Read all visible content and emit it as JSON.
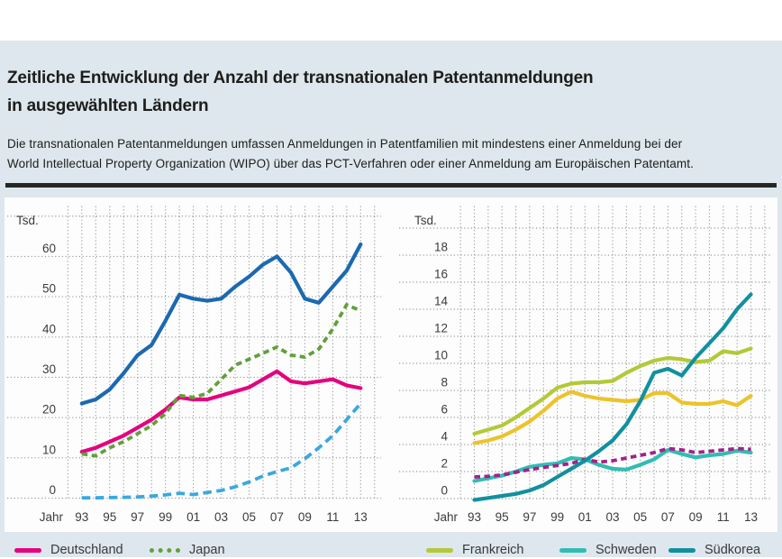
{
  "page": {
    "title_line1": "Zeitliche Entwicklung der Anzahl der transnationalen Patentanmeldungen",
    "title_line2": "in ausgewählten Ländern",
    "description_line1": "Die transnationalen Patentanmeldungen umfassen Anmeldungen in Patentfamilien mit mindestens einer Anmeldung bei der",
    "description_line2": "World Intellectual Property Organization (WIPO) über das PCT-Verfahren oder einer Anmeldung am Europäischen Patentamt.",
    "background_color": "#dde7ed",
    "panel_color": "#fdfdfe",
    "rule_color": "#262624"
  },
  "chart_data": [
    {
      "type": "line",
      "unit_label": "Tsd.",
      "x_axis_label": "Jahr",
      "x_tick_labels": [
        "93",
        "95",
        "97",
        "99",
        "01",
        "03",
        "05",
        "07",
        "09",
        "11",
        "13"
      ],
      "years": [
        1993,
        1994,
        1995,
        1996,
        1997,
        1998,
        1999,
        2000,
        2001,
        2002,
        2003,
        2004,
        2005,
        2006,
        2007,
        2008,
        2009,
        2010,
        2011,
        2012,
        2013
      ],
      "y_tick_labels": [
        "0",
        "10",
        "20",
        "30",
        "40",
        "50",
        "60"
      ],
      "ylim": [
        0,
        70
      ],
      "grid": true,
      "series": [
        {
          "name": "Deutschland",
          "legend_visible": true,
          "color": "#e5007d",
          "line_style": "solid",
          "values": [
            11.5,
            12.5,
            14,
            15.5,
            17.5,
            19.5,
            22,
            25,
            24.5,
            24.5,
            25.5,
            26.5,
            27.5,
            29.5,
            31.5,
            29,
            28.5,
            29,
            29.5,
            28,
            27.3
          ]
        },
        {
          "name": "Japan",
          "legend_visible": true,
          "color": "#61a03b",
          "line_style": "dashed",
          "values": [
            11,
            10.5,
            12.5,
            14,
            16,
            18,
            21,
            25.5,
            25,
            26,
            29.5,
            33,
            34.5,
            36,
            37.5,
            35.5,
            35,
            37,
            42,
            48,
            46.5
          ]
        },
        {
          "name": "",
          "legend_visible": false,
          "color_name": "hellblau",
          "color": "#3aa8e0",
          "line_style": "dashed-long",
          "values": [
            0.1,
            0.1,
            0.15,
            0.2,
            0.3,
            0.5,
            0.8,
            1.2,
            0.9,
            1.4,
            1.9,
            2.8,
            4,
            5.5,
            6.6,
            7.5,
            9.8,
            12.5,
            15.5,
            19.5,
            23.5
          ]
        },
        {
          "name": "",
          "legend_visible": false,
          "color_name": "blau",
          "color": "#1c69b0",
          "line_style": "solid",
          "values": [
            23.5,
            24.5,
            27,
            31,
            35.5,
            38,
            44,
            50.5,
            49.5,
            49,
            49.5,
            52.5,
            55,
            58,
            60,
            56,
            49.5,
            48.5,
            52.5,
            56.5,
            63
          ]
        }
      ]
    },
    {
      "type": "line",
      "unit_label": "Tsd.",
      "x_axis_label": "Jahr",
      "x_tick_labels": [
        "93",
        "95",
        "97",
        "99",
        "01",
        "03",
        "05",
        "07",
        "09",
        "11",
        "13"
      ],
      "years": [
        1993,
        1994,
        1995,
        1996,
        1997,
        1998,
        1999,
        2000,
        2001,
        2002,
        2003,
        2004,
        2005,
        2006,
        2007,
        2008,
        2009,
        2010,
        2011,
        2012,
        2013
      ],
      "y_tick_labels": [
        "0",
        "2",
        "4",
        "6",
        "8",
        "10",
        "12",
        "14",
        "16",
        "18"
      ],
      "ylim": [
        0,
        20
      ],
      "grid": true,
      "series": [
        {
          "name": "",
          "legend_visible": false,
          "color_name": "gelb",
          "color": "#edc32a",
          "line_style": "solid",
          "values": [
            4.1,
            4.3,
            4.6,
            5.1,
            5.7,
            6.5,
            7.4,
            7.9,
            7.6,
            7.4,
            7.3,
            7.2,
            7.3,
            7.8,
            7.8,
            7.1,
            7.0,
            7.0,
            7.2,
            6.9,
            7.6
          ]
        },
        {
          "name": "Frankreich",
          "legend_visible": true,
          "color": "#b3c937",
          "line_style": "solid",
          "values": [
            4.8,
            5.1,
            5.4,
            6.0,
            6.7,
            7.4,
            8.2,
            8.5,
            8.6,
            8.6,
            8.7,
            9.3,
            9.8,
            10.2,
            10.4,
            10.3,
            10.1,
            10.2,
            10.9,
            10.75,
            11.1
          ]
        },
        {
          "name": "Schweden",
          "legend_visible": true,
          "color": "#32bcb4",
          "line_style": "solid",
          "values": [
            1.3,
            1.5,
            1.7,
            2.0,
            2.35,
            2.5,
            2.6,
            3.0,
            2.9,
            2.5,
            2.2,
            2.15,
            2.5,
            2.9,
            3.6,
            3.3,
            3.05,
            3.2,
            3.3,
            3.55,
            3.4
          ]
        },
        {
          "name": "",
          "legend_visible": false,
          "color_name": "violett",
          "color": "#a3218a",
          "line_style": "dashed",
          "values": [
            1.6,
            1.65,
            1.75,
            1.95,
            2.15,
            2.3,
            2.45,
            2.6,
            2.9,
            2.7,
            2.8,
            3.0,
            3.2,
            3.4,
            3.7,
            3.6,
            3.4,
            3.5,
            3.6,
            3.7,
            3.65
          ]
        },
        {
          "name": "Südkorea",
          "legend_visible": true,
          "color": "#11909e",
          "line_style": "solid",
          "values": [
            -0.1,
            0.05,
            0.2,
            0.35,
            0.6,
            1.0,
            1.6,
            2.2,
            2.8,
            3.5,
            4.3,
            5.5,
            7.2,
            9.3,
            9.6,
            9.1,
            10.4,
            11.5,
            12.6,
            14.0,
            15.1
          ]
        }
      ]
    }
  ],
  "legend": {
    "items": [
      {
        "label": "Deutschland",
        "color": "#e5007d",
        "style": "solid"
      },
      {
        "label": "Japan",
        "color": "#61a03b",
        "style": "dotted"
      },
      {
        "label": "Frankreich",
        "color": "#b3c937",
        "style": "solid"
      },
      {
        "label": "Schweden",
        "color": "#32bcb4",
        "style": "solid"
      },
      {
        "label": "Südkorea",
        "color": "#11909e",
        "style": "solid"
      }
    ]
  }
}
